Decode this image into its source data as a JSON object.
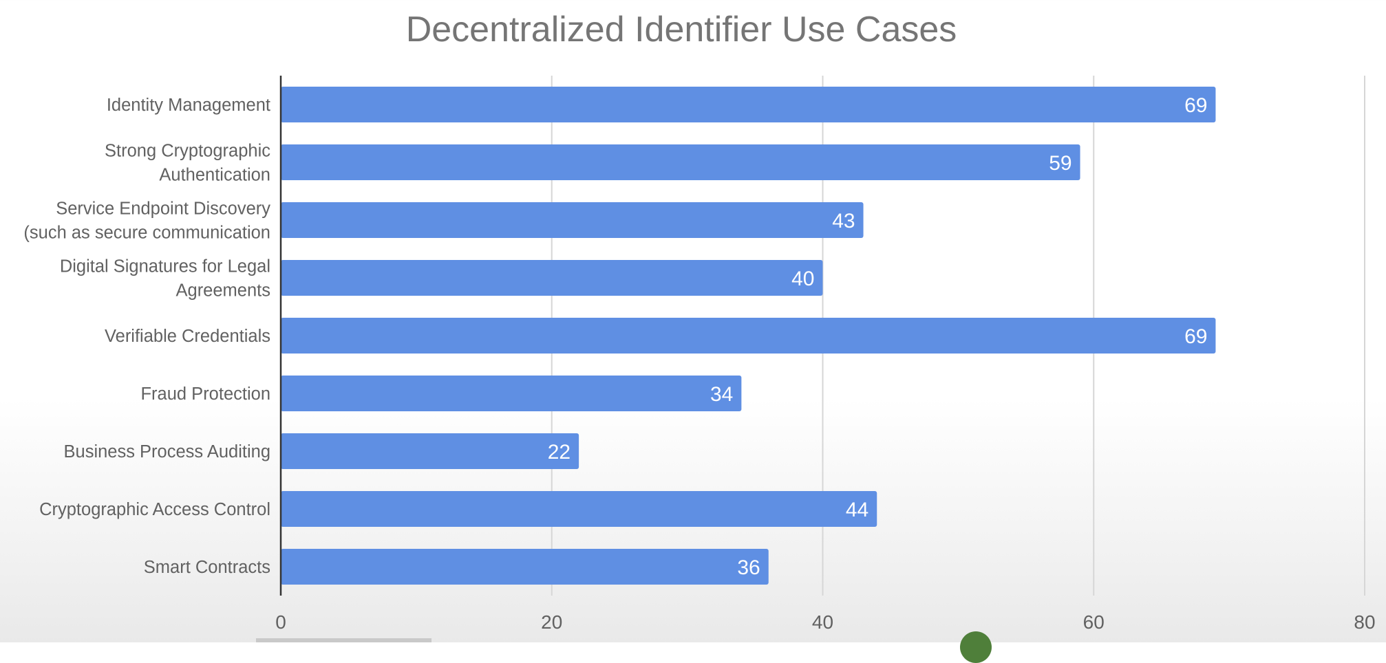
{
  "chart_data": {
    "type": "bar",
    "orientation": "horizontal",
    "title": "Decentralized Identifier Use Cases",
    "xlabel": "",
    "ylabel": "",
    "xlim": [
      0,
      80
    ],
    "xticks": [
      0,
      20,
      40,
      60,
      80
    ],
    "grid": true,
    "legend": "none",
    "bar_color": "#5f8fe3",
    "categories": [
      [
        "Identity Management"
      ],
      [
        "Strong Cryptographic",
        "Authentication"
      ],
      [
        "Service Endpoint Discovery",
        "(such as secure communication"
      ],
      [
        "Digital Signatures for Legal",
        "Agreements"
      ],
      [
        "Verifiable Credentials"
      ],
      [
        "Fraud Protection"
      ],
      [
        "Business Process Auditing"
      ],
      [
        "Cryptographic Access Control"
      ],
      [
        "Smart Contracts"
      ]
    ],
    "values": [
      69,
      59,
      43,
      40,
      69,
      34,
      22,
      44,
      36
    ],
    "data_labels": [
      "69",
      "59",
      "43",
      "40",
      "69",
      "34",
      "22",
      "44",
      "36"
    ]
  }
}
